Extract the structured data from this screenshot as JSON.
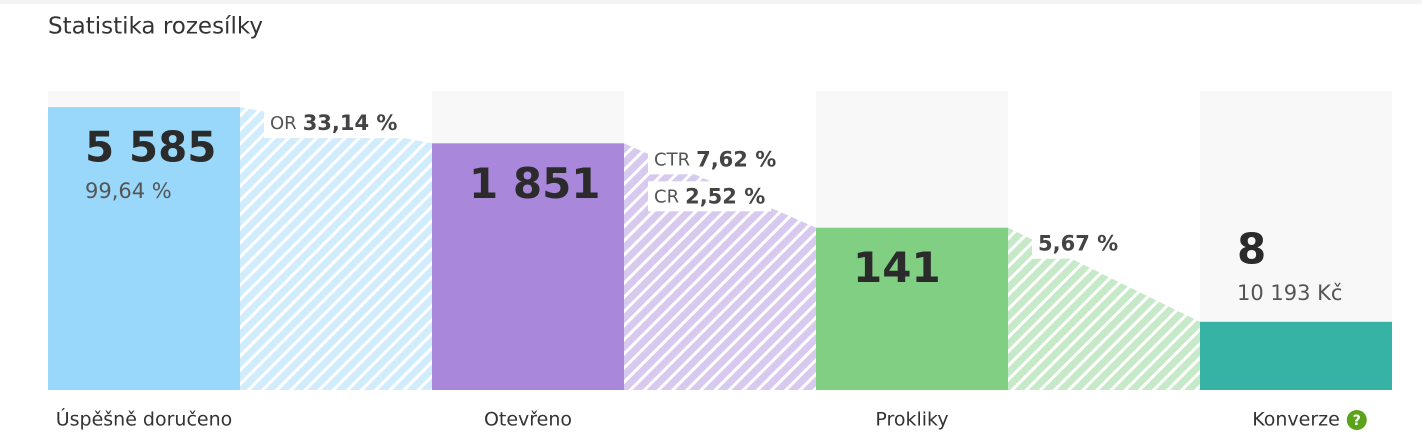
{
  "chart_data": {
    "type": "funnel",
    "title": "Statistika rozesílky",
    "categories": [
      "Úspěšně doručeno",
      "Otevřeno",
      "Prokliky",
      "Konverze"
    ],
    "values": [
      5585,
      1851,
      141,
      8
    ],
    "value_labels": [
      "5 585",
      "1 851",
      "141",
      "8"
    ],
    "colors": [
      "#99d8fb",
      "#a987db",
      "#80cf82",
      "#36b3a5"
    ],
    "stage_notes": [
      {
        "value": 99.64,
        "label": "99,64 %"
      },
      null,
      null,
      {
        "value": 10193,
        "label": "10 193 Kč"
      }
    ],
    "transitions": [
      {
        "rates": [
          {
            "name": "OR",
            "value": 33.14,
            "label": "33,14 %"
          }
        ]
      },
      {
        "rates": [
          {
            "name": "CTR",
            "value": 7.62,
            "label": "7,62 %"
          },
          {
            "name": "CR",
            "value": 2.52,
            "label": "2,52 %"
          }
        ]
      },
      {
        "rates": [
          {
            "value": 5.67,
            "label": "5,67 %"
          }
        ]
      }
    ],
    "log_scale": true,
    "ylim": [
      1,
      10000
    ],
    "help_icon": "?"
  }
}
